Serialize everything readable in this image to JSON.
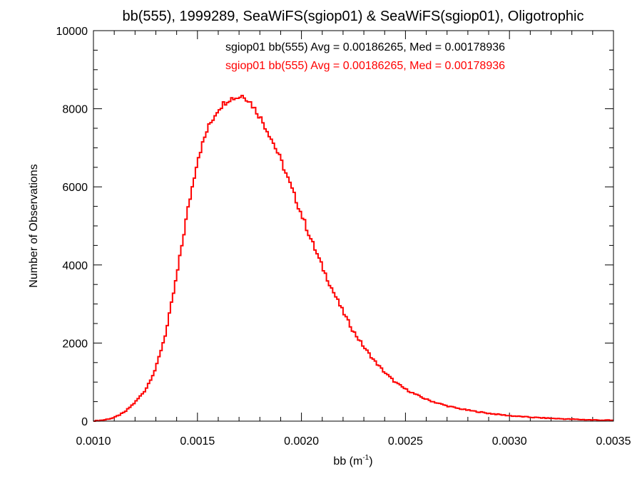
{
  "chart_data": {
    "type": "line",
    "title": "bb(555), 1999289, SeaWiFS(sgiop01) & SeaWiFS(sgiop01), Oligotrophic",
    "xlabel": {
      "base": "bb (m",
      "sup": "-1",
      "close": ")"
    },
    "ylabel": "Number of Observations",
    "xlim": [
      0.001,
      0.0035
    ],
    "ylim": [
      0,
      10000
    ],
    "xticks": [
      {
        "value": 0.001,
        "label": "0.0010"
      },
      {
        "value": 0.0015,
        "label": "0.0015"
      },
      {
        "value": 0.002,
        "label": "0.0020"
      },
      {
        "value": 0.0025,
        "label": "0.0025"
      },
      {
        "value": 0.003,
        "label": "0.0030"
      },
      {
        "value": 0.0035,
        "label": "0.0035"
      }
    ],
    "yticks": [
      {
        "value": 0,
        "label": "0"
      },
      {
        "value": 2000,
        "label": "2000"
      },
      {
        "value": 4000,
        "label": "4000"
      },
      {
        "value": 6000,
        "label": "6000"
      },
      {
        "value": 8000,
        "label": "8000"
      },
      {
        "value": 10000,
        "label": "10000"
      }
    ],
    "x_minor_per_major": 5,
    "y_minor_per_major": 4,
    "grid": false,
    "annotations": [
      {
        "text": "sgiop01 bb(555) Avg = 0.00186265, Med = 0.00178936",
        "color": "#000000"
      },
      {
        "text": "sgiop01 bb(555) Avg = 0.00186265, Med = 0.00178936",
        "color": "#ff0000"
      }
    ],
    "series": [
      {
        "color": "#ff0000",
        "style": "step",
        "x": [
          0.001,
          0.00105,
          0.0011,
          0.00115,
          0.0012,
          0.00125,
          0.0013,
          0.00135,
          0.0014,
          0.00145,
          0.0015,
          0.00155,
          0.0016,
          0.00165,
          0.0017,
          0.00172,
          0.00175,
          0.0018,
          0.00185,
          0.0019,
          0.00195,
          0.002,
          0.00205,
          0.0021,
          0.00215,
          0.0022,
          0.00225,
          0.0023,
          0.00235,
          0.0024,
          0.00245,
          0.0025,
          0.00255,
          0.0026,
          0.00265,
          0.0027,
          0.00275,
          0.0028,
          0.00285,
          0.0029,
          0.00295,
          0.003,
          0.00305,
          0.0031,
          0.00315,
          0.0032,
          0.00325,
          0.0033,
          0.00335,
          0.0034,
          0.00345,
          0.0035
        ],
        "y": [
          0,
          30,
          90,
          230,
          480,
          800,
          1350,
          2300,
          3700,
          5300,
          6700,
          7500,
          8000,
          8250,
          8300,
          8350,
          8200,
          7800,
          7300,
          6700,
          6000,
          5300,
          4600,
          3950,
          3350,
          2800,
          2300,
          1900,
          1550,
          1250,
          1000,
          820,
          680,
          560,
          470,
          390,
          330,
          280,
          240,
          200,
          170,
          140,
          120,
          100,
          85,
          72,
          60,
          50,
          40,
          32,
          25,
          20
        ]
      }
    ]
  }
}
